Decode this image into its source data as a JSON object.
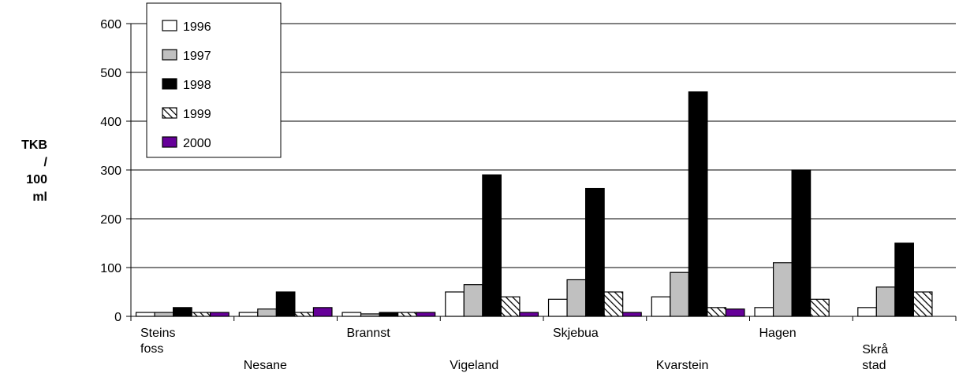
{
  "chart_data": {
    "type": "bar",
    "ylabel": [
      "TKB",
      "/",
      "100",
      "ml"
    ],
    "ylim": [
      0,
      600
    ],
    "yticks": [
      0,
      100,
      200,
      300,
      400,
      500,
      600
    ],
    "grid": true,
    "legend_position": "top-left",
    "categories": [
      {
        "lines": [
          "Steins",
          "foss"
        ]
      },
      {
        "lines": [
          "Nesane"
        ]
      },
      {
        "lines": [
          "Brannst"
        ]
      },
      {
        "lines": [
          "Vigeland"
        ]
      },
      {
        "lines": [
          "Skjebua"
        ]
      },
      {
        "lines": [
          "Kvarstein"
        ]
      },
      {
        "lines": [
          "Hagen"
        ]
      },
      {
        "lines": [
          "Skrå",
          "stad"
        ]
      }
    ],
    "series": [
      {
        "name": "1996",
        "fill": "#ffffff",
        "pattern": "none",
        "values": [
          8,
          8,
          8,
          50,
          35,
          40,
          18,
          18
        ]
      },
      {
        "name": "1997",
        "fill": "#c0c0c0",
        "pattern": "none",
        "values": [
          8,
          15,
          5,
          65,
          75,
          90,
          110,
          60
        ]
      },
      {
        "name": "1998",
        "fill": "#000000",
        "pattern": "none",
        "values": [
          18,
          50,
          8,
          290,
          262,
          460,
          300,
          150
        ]
      },
      {
        "name": "1999",
        "fill": "#ffffff",
        "pattern": "hatch",
        "values": [
          8,
          8,
          8,
          40,
          50,
          18,
          35,
          50
        ]
      },
      {
        "name": "2000",
        "fill": "#660099",
        "pattern": "none",
        "values": [
          8,
          18,
          8,
          8,
          8,
          15,
          null,
          null
        ]
      }
    ]
  }
}
